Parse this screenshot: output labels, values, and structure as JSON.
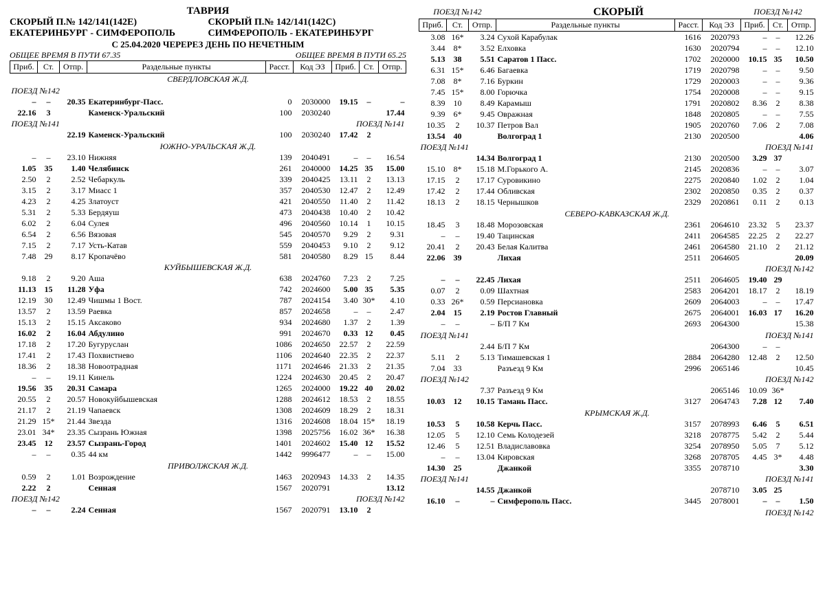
{
  "labels": {
    "title": "ТАВРИЯ",
    "fast": "СКОРЫЙ",
    "h1l": "СКОРЫЙ П.№ 142/141(142Е)",
    "h1r": "СКОРЫЙ П.№ 142/141(142С)",
    "route_l": "ЕКАТЕРИНБУРГ - СИМФЕРОПОЛЬ",
    "route_r": "СИМФЕРОПОЛЬ - ЕКАТЕРИНБУРГ",
    "sched": "С 25.04.2020 ЧЕРЕРЕЗ ДЕНЬ ПО НЕЧЕТНЫМ",
    "tt_l": "ОБЩЕЕ ВРЕМЯ В ПУТИ 67.35",
    "tt_r": "ОБЩЕЕ ВРЕМЯ В ПУТИ 65.25",
    "arr": "Приб.",
    "stop": "Ст.",
    "dep": "Отпр.",
    "pts": "Раздельные пункты",
    "dist": "Расст.",
    "code": "Код ЭЗ",
    "t142": "ПОЕЗД №142",
    "t141": "ПОЕЗД №141"
  },
  "rows_left": [
    {
      "type": "rail",
      "text": "СВЕРДЛОВСКАЯ Ж.Д."
    },
    {
      "type": "trn",
      "l": "t142",
      "r": ""
    },
    {
      "b": 1,
      "c": [
        "–",
        "–",
        "20.35",
        "Екатеринбург-Пасс.",
        "0",
        "2030000",
        "19.15",
        "–",
        "–"
      ]
    },
    {
      "b": 1,
      "c": [
        "22.16",
        "3",
        "",
        "Каменск-Уральский",
        "100",
        "2030240",
        "",
        "",
        "17.44"
      ]
    },
    {
      "type": "trn",
      "l": "t141",
      "r": "t141"
    },
    {
      "b": 1,
      "c": [
        "",
        "",
        "22.19",
        "Каменск-Уральский",
        "100",
        "2030240",
        "17.42",
        "2",
        ""
      ]
    },
    {
      "type": "rail",
      "text": "ЮЖНО-УРАЛЬСКАЯ Ж.Д."
    },
    {
      "c": [
        "–",
        "–",
        "23.10",
        "Нижняя",
        "139",
        "2040491",
        "–",
        "–",
        "16.54"
      ]
    },
    {
      "b": 1,
      "c": [
        "1.05",
        "35",
        "1.40",
        "Челябинск",
        "261",
        "2040000",
        "14.25",
        "35",
        "15.00"
      ]
    },
    {
      "c": [
        "2.50",
        "2",
        "2.52",
        "Чебаркуль",
        "339",
        "2040425",
        "13.11",
        "2",
        "13.13"
      ]
    },
    {
      "c": [
        "3.15",
        "2",
        "3.17",
        "Миасс 1",
        "357",
        "2040530",
        "12.47",
        "2",
        "12.49"
      ]
    },
    {
      "c": [
        "4.23",
        "2",
        "4.25",
        "Златоуст",
        "421",
        "2040550",
        "11.40",
        "2",
        "11.42"
      ]
    },
    {
      "c": [
        "5.31",
        "2",
        "5.33",
        "Бердяуш",
        "473",
        "2040438",
        "10.40",
        "2",
        "10.42"
      ]
    },
    {
      "c": [
        "6.02",
        "2",
        "6.04",
        "Сулея",
        "496",
        "2040560",
        "10.14",
        "1",
        "10.15"
      ]
    },
    {
      "c": [
        "6.54",
        "2",
        "6.56",
        "Вязовая",
        "545",
        "2040570",
        "9.29",
        "2",
        "9.31"
      ]
    },
    {
      "c": [
        "7.15",
        "2",
        "7.17",
        "Усть-Катав",
        "559",
        "2040453",
        "9.10",
        "2",
        "9.12"
      ]
    },
    {
      "c": [
        "7.48",
        "29",
        "8.17",
        "Кропачёво",
        "581",
        "2040580",
        "8.29",
        "15",
        "8.44"
      ]
    },
    {
      "type": "rail",
      "text": "КУЙБЫШЕВСКАЯ Ж.Д."
    },
    {
      "c": [
        "9.18",
        "2",
        "9.20",
        "Аша",
        "638",
        "2024760",
        "7.23",
        "2",
        "7.25"
      ]
    },
    {
      "b": 1,
      "c": [
        "11.13",
        "15",
        "11.28",
        "Уфа",
        "742",
        "2024600",
        "5.00",
        "35",
        "5.35"
      ]
    },
    {
      "c": [
        "12.19",
        "30",
        "12.49",
        "Чишмы 1 Вост.",
        "787",
        "2024154",
        "3.40",
        "30*",
        "4.10"
      ]
    },
    {
      "c": [
        "13.57",
        "2",
        "13.59",
        "Раевка",
        "857",
        "2024658",
        "–",
        "–",
        "2.47"
      ]
    },
    {
      "c": [
        "15.13",
        "2",
        "15.15",
        "Аксаково",
        "934",
        "2024680",
        "1.37",
        "2",
        "1.39"
      ]
    },
    {
      "b": 1,
      "c": [
        "16.02",
        "2",
        "16.04",
        "Абдулино",
        "991",
        "2024670",
        "0.33",
        "12",
        "0.45"
      ]
    },
    {
      "c": [
        "17.18",
        "2",
        "17.20",
        "Бугуруслан",
        "1086",
        "2024650",
        "22.57",
        "2",
        "22.59"
      ]
    },
    {
      "c": [
        "17.41",
        "2",
        "17.43",
        "Похвистнево",
        "1106",
        "2024640",
        "22.35",
        "2",
        "22.37"
      ]
    },
    {
      "c": [
        "18.36",
        "2",
        "18.38",
        "Новоотрадная",
        "1171",
        "2024646",
        "21.33",
        "2",
        "21.35"
      ]
    },
    {
      "c": [
        "–",
        "–",
        "19.11",
        "Кинель",
        "1224",
        "2024630",
        "20.45",
        "2",
        "20.47"
      ]
    },
    {
      "b": 1,
      "c": [
        "19.56",
        "35",
        "20.31",
        "Самара",
        "1265",
        "2024000",
        "19.22",
        "40",
        "20.02"
      ]
    },
    {
      "c": [
        "20.55",
        "2",
        "20.57",
        "Новокуйбышевская",
        "1288",
        "2024612",
        "18.53",
        "2",
        "18.55"
      ]
    },
    {
      "c": [
        "21.17",
        "2",
        "21.19",
        "Чапаевск",
        "1308",
        "2024609",
        "18.29",
        "2",
        "18.31"
      ]
    },
    {
      "c": [
        "21.29",
        "15*",
        "21.44",
        "Звезда",
        "1316",
        "2024608",
        "18.04",
        "15*",
        "18.19"
      ]
    },
    {
      "c": [
        "23.01",
        "34*",
        "23.35",
        "Сызрань Южная",
        "1398",
        "2025756",
        "16.02",
        "36*",
        "16.38"
      ]
    },
    {
      "b": 1,
      "c": [
        "23.45",
        "12",
        "23.57",
        "Сызрань-Город",
        "1401",
        "2024602",
        "15.40",
        "12",
        "15.52"
      ]
    },
    {
      "c": [
        "–",
        "–",
        "0.35",
        "44 км",
        "1442",
        "9996477",
        "–",
        "–",
        "15.00"
      ]
    },
    {
      "type": "rail",
      "text": "ПРИВОЛЖСКАЯ Ж.Д."
    },
    {
      "c": [
        "0.59",
        "2",
        "1.01",
        "Возрождение",
        "1463",
        "2020943",
        "14.33",
        "2",
        "14.35"
      ]
    },
    {
      "b": 1,
      "c": [
        "2.22",
        "2",
        "",
        "Сенная",
        "1567",
        "2020791",
        "",
        "",
        "13.12"
      ]
    },
    {
      "type": "trn",
      "l": "t142",
      "r": "t142"
    },
    {
      "b": 1,
      "c": [
        "–",
        "–",
        "2.24",
        "Сенная",
        "1567",
        "2020791",
        "13.10",
        "2",
        ""
      ]
    }
  ],
  "rows_right": [
    {
      "type": "toptrn"
    },
    {
      "type": "head"
    },
    {
      "c": [
        "3.08",
        "16*",
        "3.24",
        "Сухой Карабулак",
        "1616",
        "2020793",
        "–",
        "–",
        "12.26"
      ]
    },
    {
      "c": [
        "3.44",
        "8*",
        "3.52",
        "Елховка",
        "1630",
        "2020794",
        "–",
        "–",
        "12.10"
      ]
    },
    {
      "b": 1,
      "c": [
        "5.13",
        "38",
        "5.51",
        "Саратов 1 Пасс.",
        "1702",
        "2020000",
        "10.15",
        "35",
        "10.50"
      ]
    },
    {
      "c": [
        "6.31",
        "15*",
        "6.46",
        "Багаевка",
        "1719",
        "2020798",
        "–",
        "–",
        "9.50"
      ]
    },
    {
      "c": [
        "7.08",
        "8*",
        "7.16",
        "Буркин",
        "1729",
        "2020003",
        "–",
        "–",
        "9.36"
      ]
    },
    {
      "c": [
        "7.45",
        "15*",
        "8.00",
        "Горючка",
        "1754",
        "2020008",
        "–",
        "–",
        "9.15"
      ]
    },
    {
      "c": [
        "8.39",
        "10",
        "8.49",
        "Карамыш",
        "1791",
        "2020802",
        "8.36",
        "2",
        "8.38"
      ]
    },
    {
      "c": [
        "9.39",
        "6*",
        "9.45",
        "Овражная",
        "1848",
        "2020805",
        "–",
        "–",
        "7.55"
      ]
    },
    {
      "c": [
        "10.35",
        "2",
        "10.37",
        "Петров Вал",
        "1905",
        "2020760",
        "7.06",
        "2",
        "7.08"
      ]
    },
    {
      "b": 1,
      "c": [
        "13.54",
        "40",
        "",
        "Волгоград 1",
        "2130",
        "2020500",
        "",
        "",
        "4.06"
      ]
    },
    {
      "type": "trn",
      "l": "t141",
      "r": "t141"
    },
    {
      "b": 1,
      "c": [
        "",
        "",
        "14.34",
        "Волгоград 1",
        "2130",
        "2020500",
        "3.29",
        "37",
        ""
      ]
    },
    {
      "c": [
        "15.10",
        "8*",
        "15.18",
        "М.Горького А.",
        "2145",
        "2020836",
        "–",
        "–",
        "3.07"
      ]
    },
    {
      "c": [
        "17.15",
        "2",
        "17.17",
        "Суровикино",
        "2275",
        "2020840",
        "1.02",
        "2",
        "1.04"
      ]
    },
    {
      "c": [
        "17.42",
        "2",
        "17.44",
        "Обливская",
        "2302",
        "2020850",
        "0.35",
        "2",
        "0.37"
      ]
    },
    {
      "c": [
        "18.13",
        "2",
        "18.15",
        "Чернышков",
        "2329",
        "2020861",
        "0.11",
        "2",
        "0.13"
      ]
    },
    {
      "type": "rail",
      "text": "СЕВЕРО-КАВКАЗСКАЯ Ж.Д."
    },
    {
      "c": [
        "18.45",
        "3",
        "18.48",
        "Морозовская",
        "2361",
        "2064610",
        "23.32",
        "5",
        "23.37"
      ]
    },
    {
      "c": [
        "–",
        "–",
        "19.40",
        "Тацинская",
        "2411",
        "2064585",
        "22.25",
        "2",
        "22.27"
      ]
    },
    {
      "c": [
        "20.41",
        "2",
        "20.43",
        "Белая Калитва",
        "2461",
        "2064580",
        "21.10",
        "2",
        "21.12"
      ]
    },
    {
      "b": 1,
      "c": [
        "22.06",
        "39",
        "",
        "Лихая",
        "2511",
        "2064605",
        "",
        "",
        "20.09"
      ]
    },
    {
      "type": "trn",
      "l": "",
      "r": "t142"
    },
    {
      "b": 1,
      "c": [
        "–",
        "–",
        "22.45",
        "Лихая",
        "2511",
        "2064605",
        "19.40",
        "29",
        ""
      ]
    },
    {
      "c": [
        "0.07",
        "2",
        "0.09",
        "Шахтная",
        "2583",
        "2064201",
        "18.17",
        "2",
        "18.19"
      ]
    },
    {
      "c": [
        "0.33",
        "26*",
        "0.59",
        "Персиановка",
        "2609",
        "2064003",
        "–",
        "–",
        "17.47"
      ]
    },
    {
      "b": 1,
      "c": [
        "2.04",
        "15",
        "2.19",
        "Ростов Главный",
        "2675",
        "2064001",
        "16.03",
        "17",
        "16.20"
      ]
    },
    {
      "c": [
        "–",
        "–",
        "–",
        "Б/П 7 Км",
        "2693",
        "2064300",
        "",
        "",
        "15.38"
      ]
    },
    {
      "type": "trn",
      "l": "t141",
      "r": "t141"
    },
    {
      "c": [
        "",
        "",
        "2.44",
        "Б/П 7 Км",
        "",
        "2064300",
        "–",
        "–",
        ""
      ]
    },
    {
      "c": [
        "5.11",
        "2",
        "5.13",
        "Тимашевская 1",
        "2884",
        "2064280",
        "12.48",
        "2",
        "12.50"
      ]
    },
    {
      "c": [
        "7.04",
        "33",
        "",
        "Разъезд 9 Км",
        "2996",
        "2065146",
        "",
        "",
        "10.45"
      ]
    },
    {
      "type": "trn",
      "l": "t142",
      "r": "t142"
    },
    {
      "c": [
        "",
        "",
        "7.37",
        "Разъезд 9 Км",
        "",
        "2065146",
        "10.09",
        "36*",
        ""
      ]
    },
    {
      "b": 1,
      "c": [
        "10.03",
        "12",
        "10.15",
        "Тамань Пасс.",
        "3127",
        "2064743",
        "7.28",
        "12",
        "7.40"
      ]
    },
    {
      "type": "rail",
      "text": "КРЫМСКАЯ Ж.Д."
    },
    {
      "b": 1,
      "c": [
        "10.53",
        "5",
        "10.58",
        "Керчь Пасс.",
        "3157",
        "2078993",
        "6.46",
        "5",
        "6.51"
      ]
    },
    {
      "c": [
        "12.05",
        "5",
        "12.10",
        "Семь Колодезей",
        "3218",
        "2078775",
        "5.42",
        "2",
        "5.44"
      ]
    },
    {
      "c": [
        "12.46",
        "5",
        "12.51",
        "Владиславовка",
        "3254",
        "2078950",
        "5.05",
        "7",
        "5.12"
      ]
    },
    {
      "c": [
        "–",
        "–",
        "13.04",
        "Кировская",
        "3268",
        "2078705",
        "4.45",
        "3*",
        "4.48"
      ]
    },
    {
      "b": 1,
      "c": [
        "14.30",
        "25",
        "",
        "Джанкой",
        "3355",
        "2078710",
        "",
        "",
        "3.30"
      ]
    },
    {
      "type": "trn",
      "l": "t141",
      "r": "t141"
    },
    {
      "b": 1,
      "c": [
        "",
        "",
        "14.55",
        "Джанкой",
        "",
        "2078710",
        "3.05",
        "25",
        ""
      ]
    },
    {
      "b": 1,
      "c": [
        "16.10",
        "–",
        "–",
        "Симферополь Пасс.",
        "3445",
        "2078001",
        "–",
        "–",
        "1.50"
      ]
    },
    {
      "type": "trn",
      "l": "",
      "r": "t142"
    }
  ]
}
